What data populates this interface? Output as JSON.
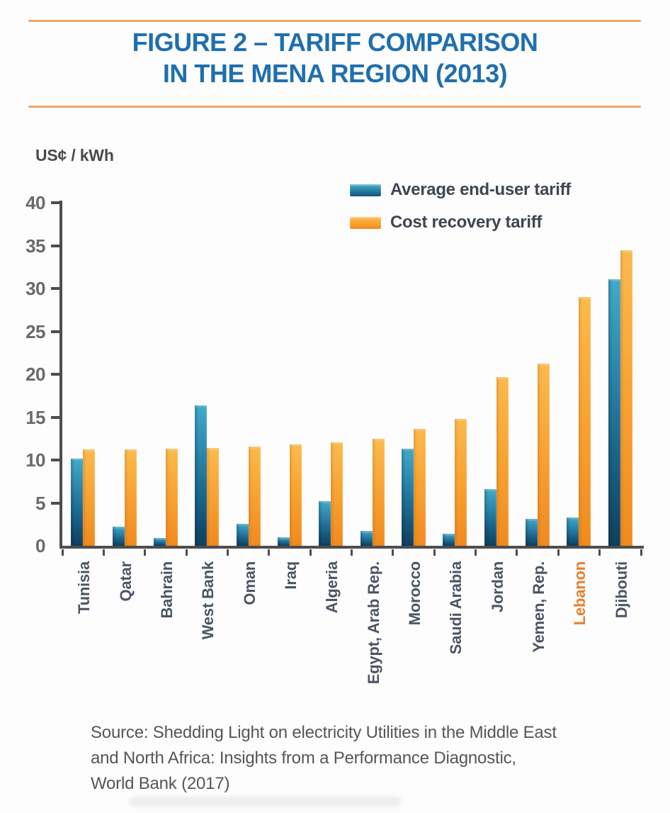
{
  "page": {
    "background": "#fdfdfd"
  },
  "title": {
    "line1": "FIGURE 2 – TARIFF COMPARISON",
    "line2": "IN THE MENA REGION (2013)",
    "color": "#1f6fb0"
  },
  "rules": {
    "color": "#e8a76b"
  },
  "axis_unit_label": "US¢ / kWh",
  "chart_data": {
    "type": "bar",
    "title": "FIGURE 2 – TARIFF COMPARISON IN THE MENA REGION (2013)",
    "ylabel": "US¢ / kWh",
    "xlabel": "",
    "ylim": [
      0,
      40
    ],
    "yticks": [
      0,
      5,
      10,
      15,
      20,
      25,
      30,
      35,
      40
    ],
    "grid": false,
    "legend_position": "top-right-inside",
    "categories": [
      "Tunisia",
      "Qatar",
      "Bahrain",
      "West Bank",
      "Oman",
      "Iraq",
      "Algeria",
      "Egypt, Arab Rep.",
      "Morocco",
      "Saudi Arabia",
      "Jordan",
      "Yemen, Rep.",
      "Lebanon",
      "Djibouti"
    ],
    "series": [
      {
        "name": "Average end-user tariff",
        "color_top": "#41aacb",
        "color_bottom": "#0f3f60",
        "values": [
          10.2,
          2.2,
          0.9,
          16.4,
          2.6,
          1.0,
          5.2,
          1.7,
          11.3,
          1.4,
          6.6,
          3.1,
          3.3,
          31.1
        ]
      },
      {
        "name": "Cost recovery tariff",
        "color_top": "#fcba4c",
        "color_bottom": "#f18a1e",
        "values": [
          11.2,
          11.2,
          11.3,
          11.4,
          11.6,
          11.8,
          12.1,
          12.5,
          13.6,
          14.8,
          19.7,
          21.2,
          29.0,
          34.5
        ]
      }
    ],
    "highlighted_category": "Lebanon",
    "highlight_color": "#e87e2e",
    "axis_color": "#4d4d4d",
    "tick_label_color": "#6a6a6a",
    "category_label_color": "#4b5563"
  },
  "source": {
    "line1": "Source: Shedding Light on electricity Utilities in the Middle East",
    "line2": "and North Africa: Insights from a Performance Diagnostic,",
    "line3": "World Bank (2017)"
  }
}
